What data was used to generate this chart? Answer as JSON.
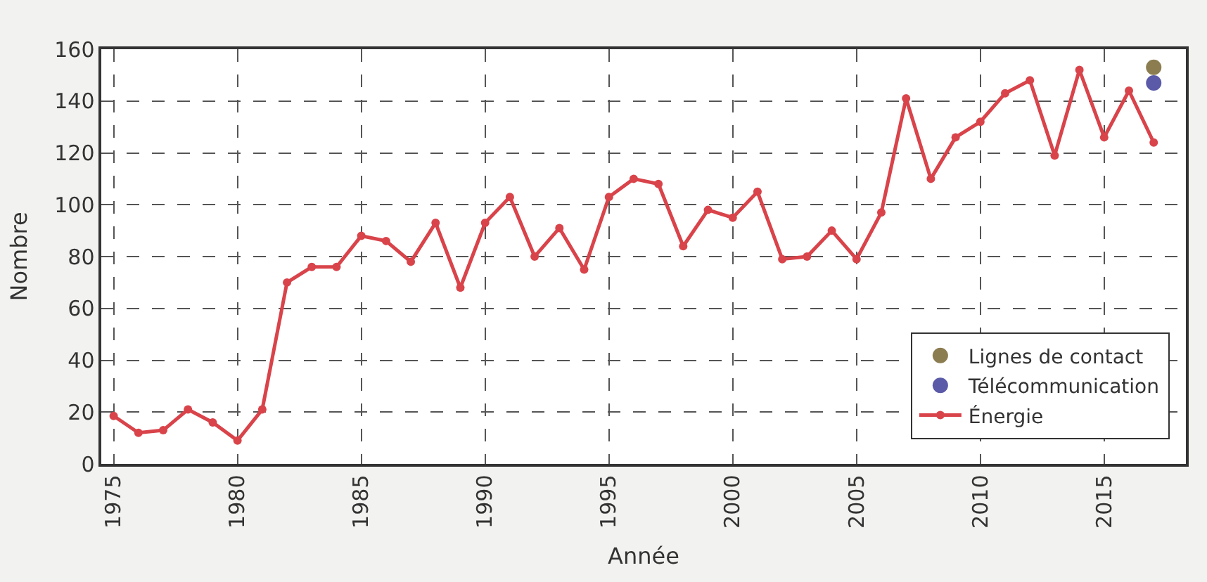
{
  "chart_data": {
    "type": "line",
    "xlabel": "Année",
    "ylabel": "Nombre",
    "xlim": [
      1974.5,
      2018.3
    ],
    "xticks": [
      1975,
      1980,
      1985,
      1990,
      1995,
      2000,
      2005,
      2010,
      2015
    ],
    "ylim": [
      0,
      160
    ],
    "yticks": [
      0,
      20,
      40,
      60,
      80,
      100,
      120,
      140,
      160
    ],
    "grid": true,
    "legend": "bottom right",
    "marker": "circle",
    "series": [
      {
        "name": "Lignes de contact",
        "color": "#8b7d50",
        "type": "scatter",
        "x": [
          2017
        ],
        "values": [
          153
        ]
      },
      {
        "name": "Télécommunication",
        "color": "#5a5aa8",
        "type": "scatter",
        "x": [
          2017
        ],
        "values": [
          147
        ]
      },
      {
        "name": "Énergie",
        "color": "#d9434a",
        "x": [
          1975,
          1976,
          1977,
          1978,
          1979,
          1980,
          1981,
          1982,
          1983,
          1984,
          1985,
          1986,
          1987,
          1988,
          1989,
          1990,
          1991,
          1992,
          1993,
          1994,
          1995,
          1996,
          1997,
          1998,
          1999,
          2000,
          2001,
          2002,
          2003,
          2004,
          2005,
          2006,
          2007,
          2008,
          2009,
          2010,
          2011,
          2012,
          2013,
          2014,
          2015,
          2016,
          2017
        ],
        "values": [
          18.5,
          12,
          13,
          21,
          16,
          9,
          21,
          70,
          76,
          76,
          88,
          86,
          78,
          93,
          68,
          93,
          103,
          80,
          91,
          75,
          103,
          110,
          108,
          84,
          98,
          95,
          105,
          79,
          80,
          90,
          79,
          97,
          141,
          110,
          126,
          132,
          143,
          148,
          119,
          152,
          126,
          144,
          124
        ]
      }
    ]
  }
}
